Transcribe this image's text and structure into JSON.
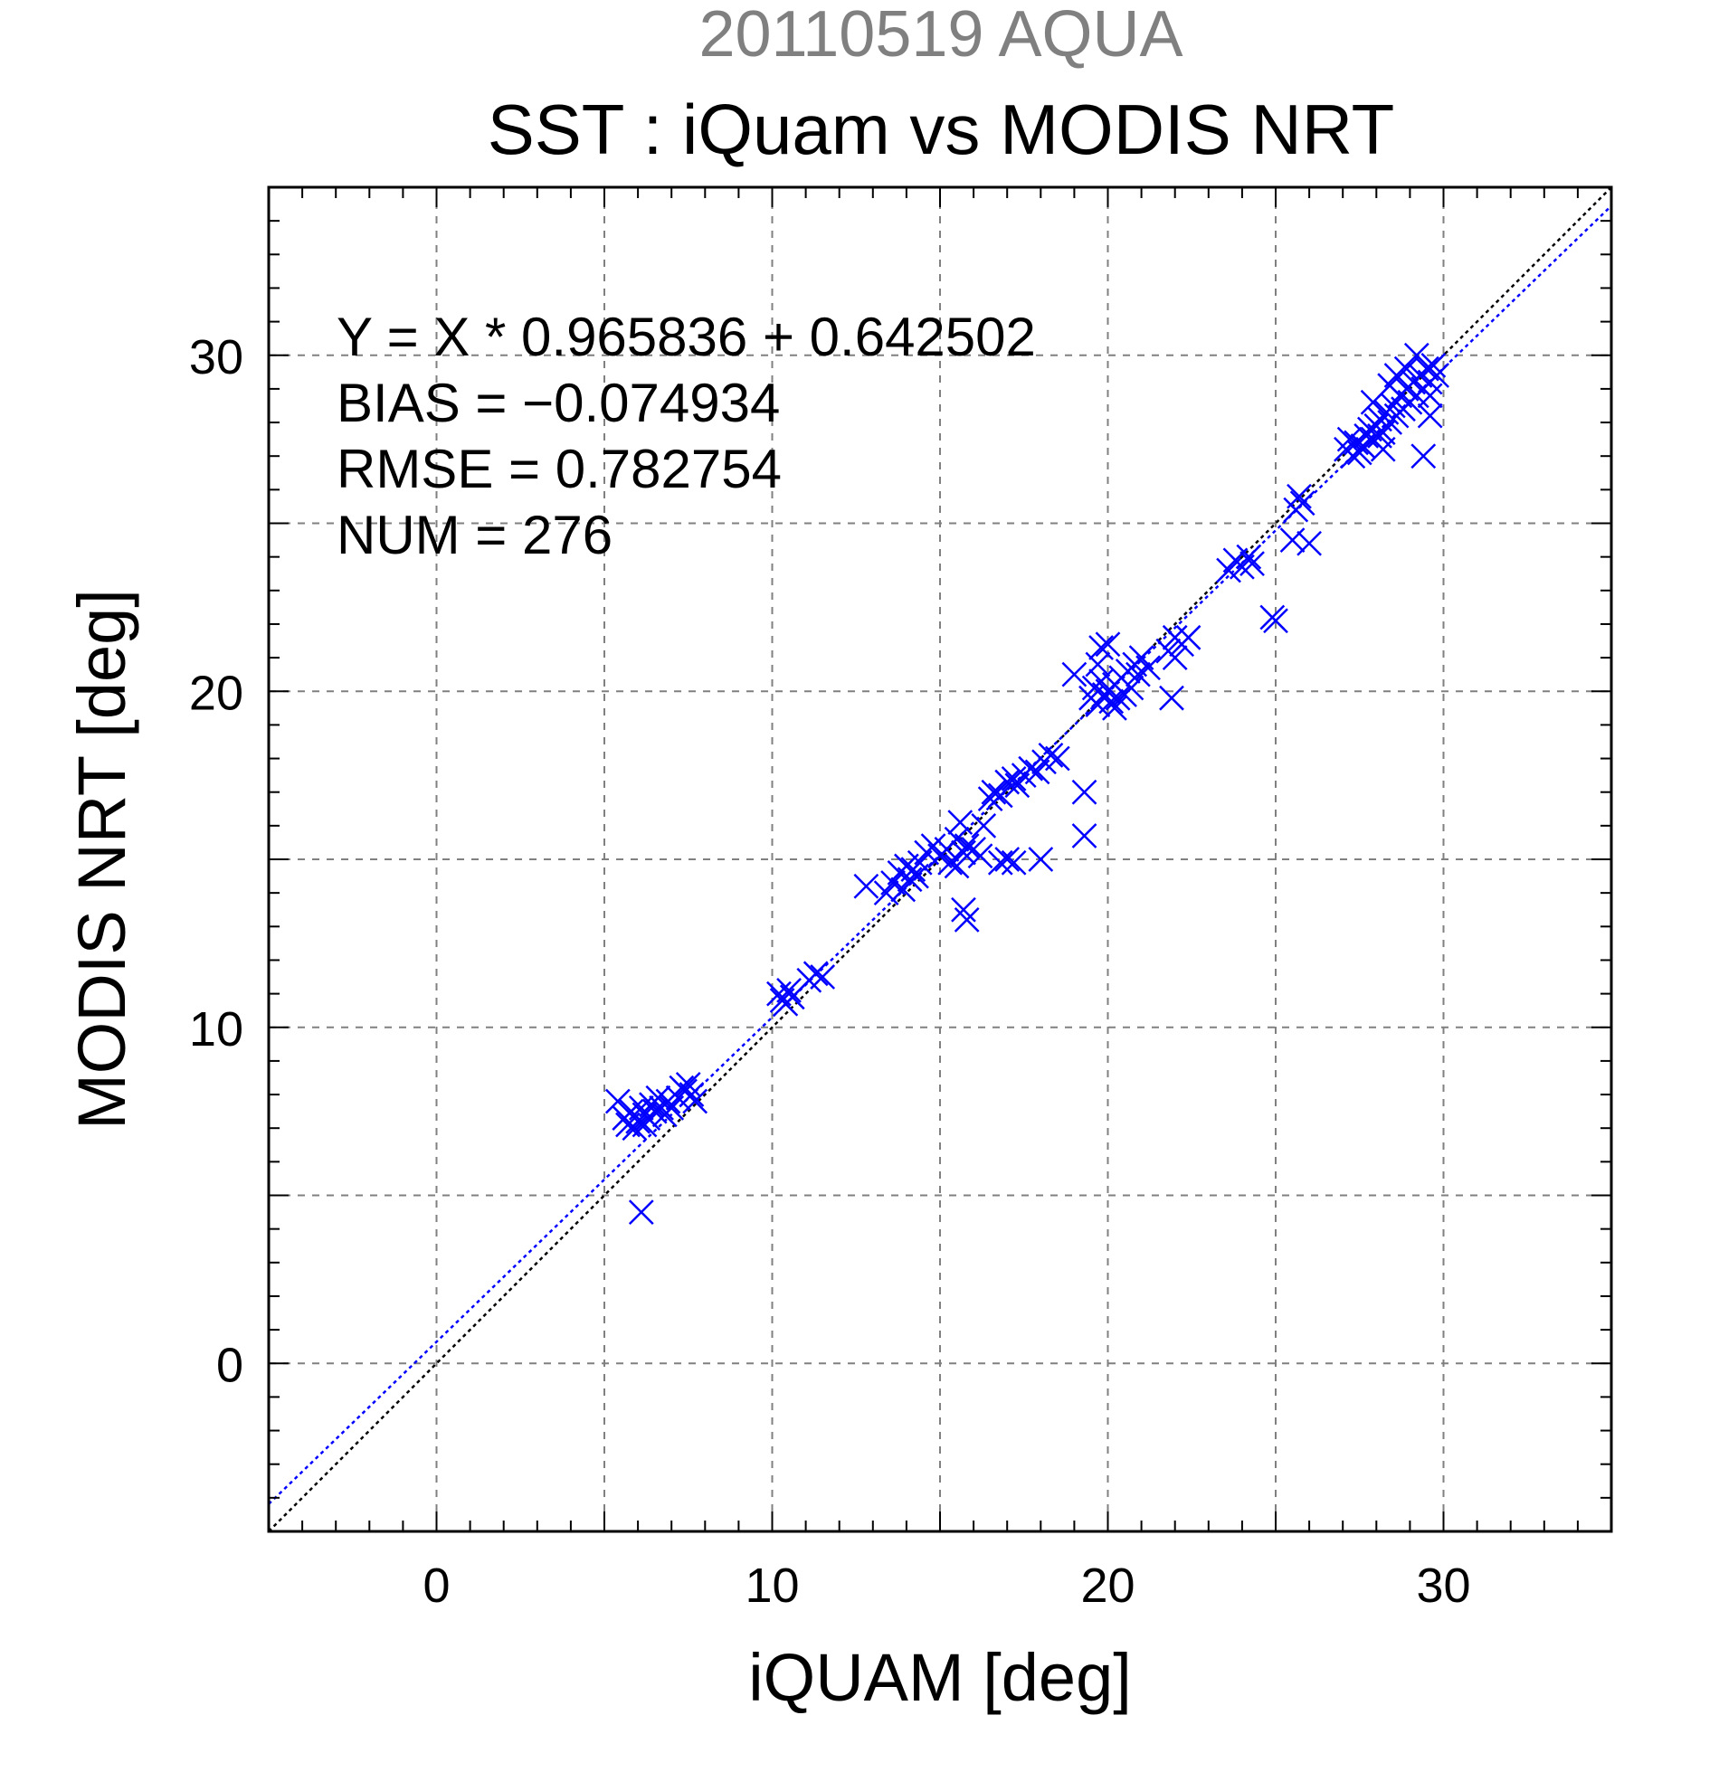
{
  "chart_data": {
    "type": "scatter",
    "title_top": "20110519 AQUA",
    "title": "SST : iQuam vs MODIS NRT",
    "xlabel": "iQUAM [deg]",
    "ylabel": "MODIS NRT [deg]",
    "xlim": [
      -5,
      35
    ],
    "ylim": [
      -5,
      35
    ],
    "x_ticks": [
      0,
      10,
      20,
      30
    ],
    "y_ticks": [
      0,
      10,
      20,
      30
    ],
    "x_tick_labels": [
      "0",
      "10",
      "20",
      "30"
    ],
    "y_tick_labels": [
      "0",
      "10",
      "20",
      "30"
    ],
    "grid": true,
    "stats": [
      "Y = X * 0.965836 + 0.642502",
      "BIAS = −0.074934",
      "RMSE = 0.782754",
      "NUM = 276"
    ],
    "lines": [
      {
        "kind": "identity",
        "slope": 1.0,
        "intercept": 0.0,
        "color": "#000000",
        "style": "dotted"
      },
      {
        "kind": "regression",
        "slope": 0.965836,
        "intercept": 0.642502,
        "color": "#0000ff",
        "style": "dotted"
      }
    ],
    "marker": "x",
    "marker_color": "#0000ff",
    "series": [
      {
        "points": [
          [
            5.4,
            7.8
          ],
          [
            5.6,
            7.3
          ],
          [
            5.8,
            7.5
          ],
          [
            5.9,
            7.0
          ],
          [
            6.0,
            7.2
          ],
          [
            6.1,
            7.6
          ],
          [
            6.2,
            7.1
          ],
          [
            6.3,
            7.3
          ],
          [
            6.4,
            7.7
          ],
          [
            6.5,
            7.5
          ],
          [
            6.6,
            7.9
          ],
          [
            6.7,
            7.6
          ],
          [
            6.8,
            7.4
          ],
          [
            6.9,
            7.8
          ],
          [
            7.0,
            7.6
          ],
          [
            7.2,
            7.9
          ],
          [
            7.4,
            8.1
          ],
          [
            7.5,
            8.3
          ],
          [
            7.6,
            8.0
          ],
          [
            7.7,
            7.8
          ],
          [
            7.3,
            8.2
          ],
          [
            6.1,
            4.5
          ],
          [
            5.7,
            7.1
          ],
          [
            6.2,
            7.4
          ],
          [
            10.2,
            11.0
          ],
          [
            10.3,
            10.8
          ],
          [
            10.5,
            11.1
          ],
          [
            10.4,
            10.7
          ],
          [
            11.1,
            11.4
          ],
          [
            11.3,
            11.6
          ],
          [
            11.5,
            11.5
          ],
          [
            10.6,
            10.9
          ],
          [
            12.8,
            14.2
          ],
          [
            13.4,
            14.0
          ],
          [
            13.6,
            14.3
          ],
          [
            13.8,
            14.6
          ],
          [
            13.9,
            14.1
          ],
          [
            14.0,
            14.8
          ],
          [
            14.1,
            14.4
          ],
          [
            14.2,
            14.7
          ],
          [
            14.3,
            14.5
          ],
          [
            14.4,
            14.9
          ],
          [
            14.6,
            15.2
          ],
          [
            14.8,
            15.4
          ],
          [
            15.0,
            15.1
          ],
          [
            15.2,
            15.3
          ],
          [
            15.3,
            14.9
          ],
          [
            15.5,
            15.6
          ],
          [
            15.6,
            16.1
          ],
          [
            15.7,
            15.2
          ],
          [
            15.8,
            15.4
          ],
          [
            16.0,
            15.3
          ],
          [
            16.2,
            15.1
          ],
          [
            15.5,
            14.8
          ],
          [
            15.7,
            13.5
          ],
          [
            15.8,
            13.2
          ],
          [
            16.3,
            16.0
          ],
          [
            16.5,
            16.8
          ],
          [
            16.6,
            17.0
          ],
          [
            16.8,
            16.9
          ],
          [
            17.0,
            17.3
          ],
          [
            17.2,
            17.4
          ],
          [
            17.3,
            17.2
          ],
          [
            17.5,
            17.5
          ],
          [
            17.7,
            17.7
          ],
          [
            17.9,
            17.6
          ],
          [
            18.1,
            17.9
          ],
          [
            18.3,
            18.1
          ],
          [
            18.5,
            18.0
          ],
          [
            16.8,
            14.9
          ],
          [
            17.0,
            15.0
          ],
          [
            17.2,
            14.9
          ],
          [
            18.0,
            15.0
          ],
          [
            19.3,
            17.0
          ],
          [
            19.3,
            15.7
          ],
          [
            19.0,
            20.5
          ],
          [
            19.5,
            19.8
          ],
          [
            19.6,
            20.1
          ],
          [
            19.7,
            19.6
          ],
          [
            19.8,
            20.3
          ],
          [
            19.9,
            19.9
          ],
          [
            20.0,
            20.0
          ],
          [
            20.1,
            19.7
          ],
          [
            20.2,
            20.2
          ],
          [
            20.3,
            19.8
          ],
          [
            20.4,
            20.4
          ],
          [
            20.5,
            19.9
          ],
          [
            20.6,
            20.6
          ],
          [
            20.7,
            20.1
          ],
          [
            20.8,
            20.8
          ],
          [
            20.9,
            20.5
          ],
          [
            21.0,
            21.0
          ],
          [
            21.2,
            20.7
          ],
          [
            19.8,
            21.3
          ],
          [
            20.0,
            21.4
          ],
          [
            20.2,
            19.5
          ],
          [
            19.7,
            20.8
          ],
          [
            21.8,
            21.2
          ],
          [
            22.0,
            21.0
          ],
          [
            22.2,
            21.4
          ],
          [
            22.4,
            21.6
          ],
          [
            21.9,
            19.8
          ],
          [
            22.0,
            21.6
          ],
          [
            23.6,
            23.6
          ],
          [
            23.8,
            23.9
          ],
          [
            24.0,
            23.7
          ],
          [
            24.2,
            24.0
          ],
          [
            24.3,
            23.8
          ],
          [
            24.9,
            22.2
          ],
          [
            25.0,
            22.1
          ],
          [
            25.6,
            25.4
          ],
          [
            25.7,
            25.8
          ],
          [
            25.8,
            25.6
          ],
          [
            25.5,
            24.5
          ],
          [
            26.0,
            24.4
          ],
          [
            27.1,
            27.2
          ],
          [
            27.3,
            27.0
          ],
          [
            27.4,
            27.4
          ],
          [
            27.5,
            27.1
          ],
          [
            27.6,
            27.3
          ],
          [
            27.7,
            27.6
          ],
          [
            27.8,
            27.8
          ],
          [
            27.9,
            27.5
          ],
          [
            28.0,
            27.9
          ],
          [
            28.1,
            28.1
          ],
          [
            28.2,
            27.7
          ],
          [
            28.3,
            28.3
          ],
          [
            28.4,
            28.0
          ],
          [
            28.5,
            28.5
          ],
          [
            28.6,
            28.2
          ],
          [
            28.7,
            28.8
          ],
          [
            28.8,
            28.4
          ],
          [
            28.9,
            29.0
          ],
          [
            29.0,
            28.6
          ],
          [
            29.1,
            29.2
          ],
          [
            29.2,
            28.8
          ],
          [
            29.3,
            29.4
          ],
          [
            29.4,
            29.0
          ],
          [
            29.5,
            29.6
          ],
          [
            29.6,
            29.2
          ],
          [
            29.7,
            29.7
          ],
          [
            29.8,
            29.4
          ],
          [
            28.2,
            27.2
          ],
          [
            29.6,
            28.2
          ],
          [
            29.4,
            27.0
          ],
          [
            28.6,
            29.4
          ],
          [
            28.9,
            29.6
          ],
          [
            29.2,
            30.0
          ],
          [
            27.9,
            28.6
          ],
          [
            28.4,
            29.1
          ],
          [
            29.6,
            28.8
          ],
          [
            28.1,
            27.6
          ],
          [
            27.2,
            27.5
          ]
        ]
      }
    ]
  }
}
